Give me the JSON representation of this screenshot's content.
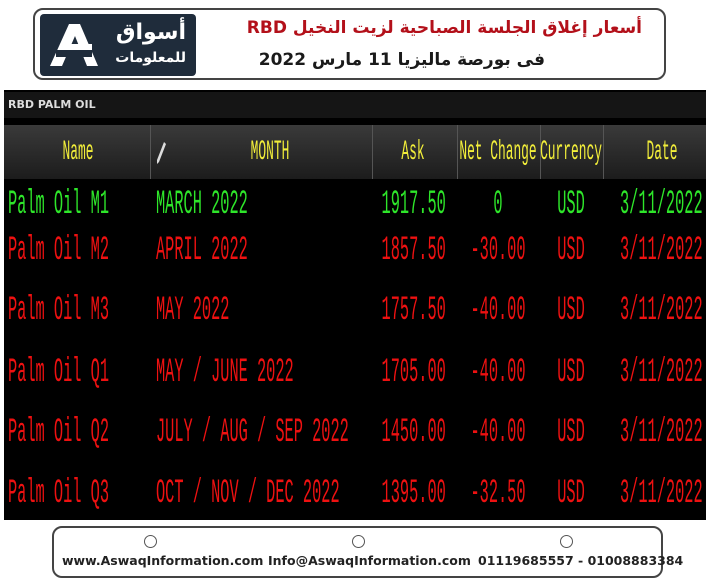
{
  "header": {
    "logo": {
      "name": "أسواق",
      "subtitle": "للمعلومات"
    },
    "title_lines": [
      "أسعار  إغلاق الجلسة الصباحية لزيت النخيل RBD",
      "فى بورصة ماليزيا 11 مارس 2022"
    ]
  },
  "table": {
    "title": "RBD PALM OIL",
    "columns": [
      "Name",
      "MONTH",
      "Ask",
      "Net Change",
      "Currency",
      "Date"
    ],
    "rows": [
      {
        "color": "#2ee62a",
        "cells": [
          "Palm Oil M1",
          "MARCH 2022",
          "1917.50",
          "0",
          "USD",
          "3/11/2022"
        ]
      },
      {
        "color": "#ee1111",
        "cells": [
          "Palm Oil M2",
          "APRIL 2022",
          "1857.50",
          "-30.00",
          "USD",
          "3/11/2022"
        ]
      },
      {
        "color": "#ee1111",
        "cells": [
          "Palm Oil M3",
          "MAY 2022",
          "1757.50",
          "-40.00",
          "USD",
          "3/11/2022"
        ]
      },
      {
        "color": "#ee1111",
        "cells": [
          "Palm Oil Q1",
          "MAY / JUNE 2022",
          "1705.00",
          "-40.00",
          "USD",
          "3/11/2022"
        ]
      },
      {
        "color": "#ee1111",
        "cells": [
          "Palm Oil Q2",
          "JULY / AUG / SEP 2022",
          "1450.00",
          "-40.00",
          "USD",
          "3/11/2022"
        ]
      },
      {
        "color": "#ee1111",
        "cells": [
          "Palm Oil Q3",
          "OCT / NOV / DEC 2022",
          "1395.00",
          "-32.50",
          "USD",
          "3/11/2022"
        ]
      }
    ]
  },
  "footer": {
    "website": "www.AswaqInformation.com",
    "email": "Info@AswaqInformation.com",
    "phone": "01119685557 - 01008883384"
  }
}
